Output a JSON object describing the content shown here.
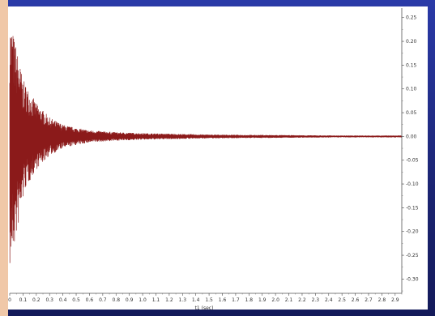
{
  "colors": {
    "background": "#1f2a8a",
    "panel": "#ffffff",
    "waveform": "#8b1a1a",
    "axis": "#555555"
  },
  "chart_data": {
    "type": "line",
    "title": "",
    "xlabel": "t1 (sec)",
    "ylabel": "",
    "xlim": [
      0,
      2.95
    ],
    "ylim": [
      -0.33,
      0.27
    ],
    "x_ticks": [
      "0",
      "0.1",
      "0.2",
      "0.3",
      "0.4",
      "0.5",
      "0.6",
      "0.7",
      "0.8",
      "0.9",
      "1.0",
      "1.1",
      "1.2",
      "1.3",
      "1.4",
      "1.5",
      "1.6",
      "1.7",
      "1.8",
      "1.9",
      "2.0",
      "2.1",
      "2.2",
      "2.3",
      "2.4",
      "2.5",
      "2.6",
      "2.7",
      "2.8",
      "2.9"
    ],
    "y_ticks": [
      "0.25",
      "0.20",
      "0.15",
      "0.10",
      "0.05",
      "0.00",
      "-0.05",
      "-0.10",
      "-0.15",
      "-0.20",
      "-0.25",
      "-0.30"
    ],
    "y_axis_side": "right",
    "grid": false,
    "series": [
      {
        "description_note": "",
        "envelope_peak_positive": 0.25,
        "envelope_peak_negative": -0.28,
        "decay_time_constant_sec": 0.18,
        "x": [
          0.0,
          0.05,
          0.1,
          0.2,
          0.3,
          0.4,
          0.5,
          0.6,
          0.8,
          1.0,
          1.5,
          2.0,
          2.5,
          2.95
        ],
        "envelope": [
          0.25,
          0.19,
          0.12,
          0.07,
          0.04,
          0.025,
          0.018,
          0.013,
          0.009,
          0.007,
          0.004,
          0.003,
          0.002,
          0.002
        ]
      }
    ]
  }
}
